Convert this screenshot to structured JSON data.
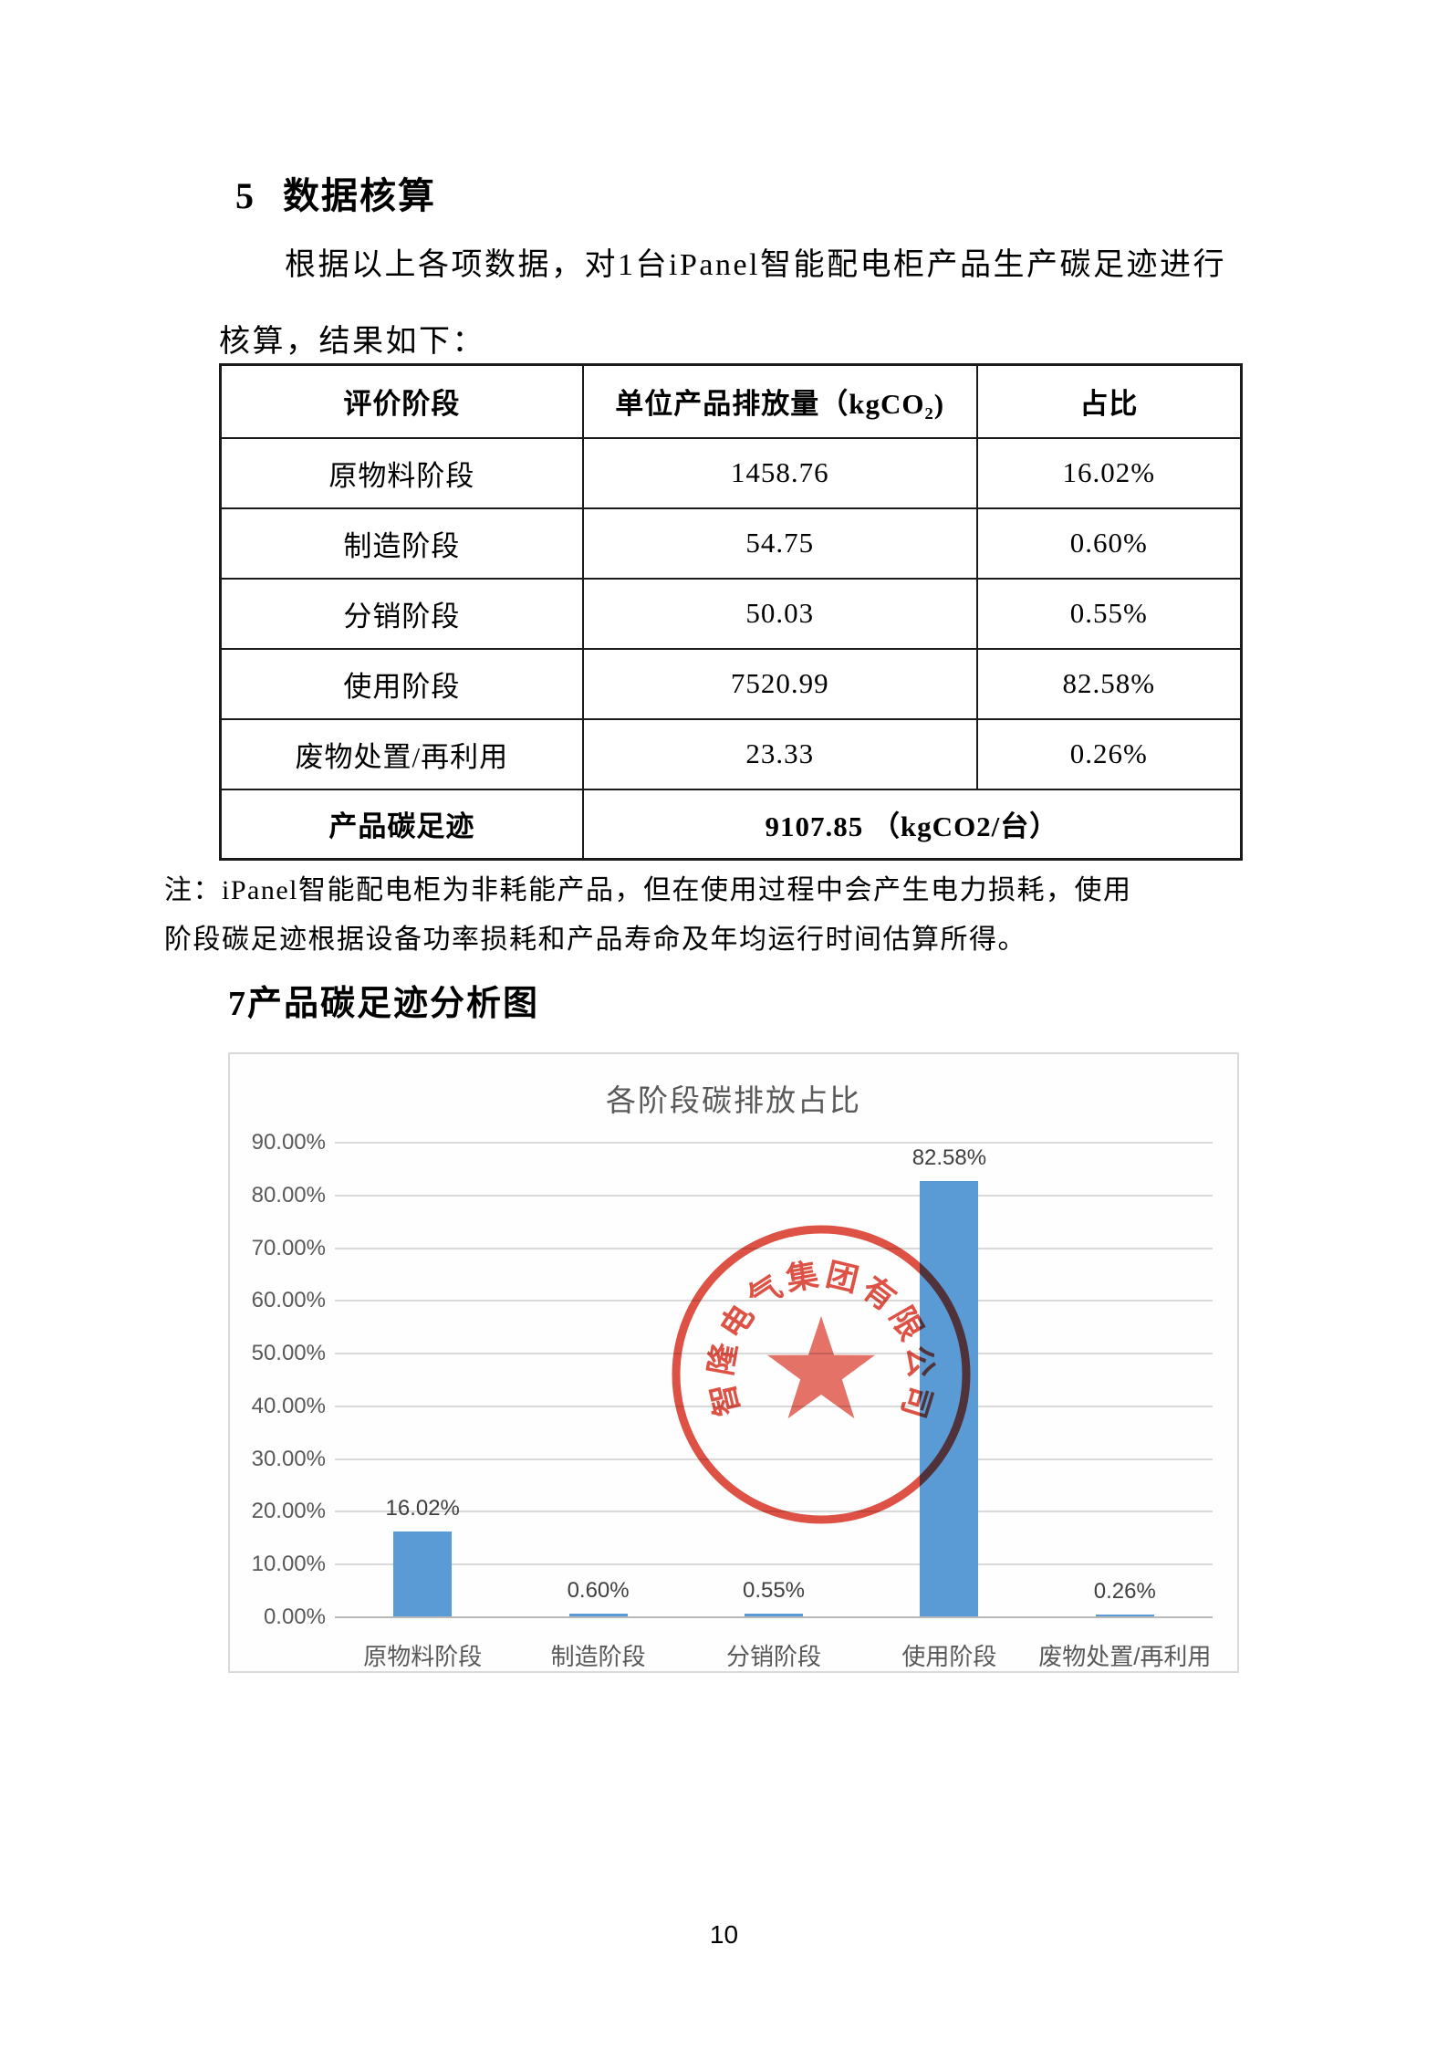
{
  "document": {
    "section5": {
      "number": "5",
      "title": "数据核算",
      "paragraph_line1": "根据以上各项数据，对1台iPanel智能配电柜产品生产碳足迹进行",
      "paragraph_line2": "核算，结果如下："
    },
    "table": {
      "headers": {
        "stage": "评价阶段",
        "emission": "单位产品排放量（kgCO₂)",
        "share": "占比"
      },
      "rows": [
        {
          "stage": "原物料阶段",
          "emission": "1458.76",
          "share": "16.02%"
        },
        {
          "stage": "制造阶段",
          "emission": "54.75",
          "share": "0.60%"
        },
        {
          "stage": "分销阶段",
          "emission": "50.03",
          "share": "0.55%"
        },
        {
          "stage": "使用阶段",
          "emission": "7520.99",
          "share": "82.58%"
        },
        {
          "stage": "废物处置/再利用",
          "emission": "23.33",
          "share": "0.26%"
        }
      ],
      "total_row": {
        "stage": "产品碳足迹",
        "value": "9107.85 （kgCO2/台）"
      }
    },
    "note_line1": "注：iPanel智能配电柜为非耗能产品，但在使用过程中会产生电力损耗，使用",
    "note_line2": "阶段碳足迹根据设备功率损耗和产品寿命及年均运行时间估算所得。",
    "section7_title": "7产品碳足迹分析图",
    "page_number": "10"
  },
  "chart_data": {
    "type": "bar",
    "title": "各阶段碳排放占比",
    "categories": [
      "原物料阶段",
      "制造阶段",
      "分销阶段",
      "使用阶段",
      "废物处置/再利用"
    ],
    "values": [
      16.02,
      0.6,
      0.55,
      82.58,
      0.26
    ],
    "value_labels": [
      "16.02%",
      "0.60%",
      "0.55%",
      "82.58%",
      "0.26%"
    ],
    "y_ticks": [
      "90.00%",
      "80.00%",
      "70.00%",
      "60.00%",
      "50.00%",
      "40.00%",
      "30.00%",
      "20.00%",
      "10.00%",
      "0.00%"
    ],
    "ylim": [
      0,
      90
    ],
    "grid": true,
    "legend": "none",
    "bar_color": "#5b9bd5",
    "axis_text_color": "#595959"
  },
  "stamp": {
    "company": "智隆电气集团有限公司",
    "color": "#d93a2b"
  }
}
